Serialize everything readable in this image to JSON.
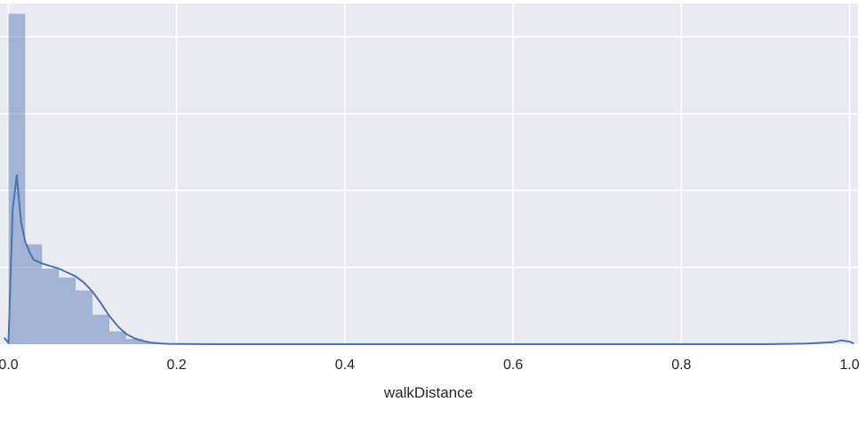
{
  "chart_data": {
    "type": "histogram",
    "xlabel": "walkDistance",
    "ylabel": "",
    "title": "",
    "xlim": [
      -0.01,
      1.01
    ],
    "ylim": [
      0,
      26.6
    ],
    "x_ticks": [
      0.0,
      0.2,
      0.4,
      0.6,
      0.8,
      1.0
    ],
    "x_tick_labels": [
      "0.0",
      "0.2",
      "0.4",
      "0.6",
      "0.8",
      "1.0"
    ],
    "y_gridlines": [
      6,
      12,
      18,
      24
    ],
    "grid": true,
    "style": "seaborn-darkgrid",
    "colors": {
      "background": "#eaeaf2",
      "grid": "#ffffff",
      "bars": "#4c72b0",
      "kde_line": "#4c72b0"
    },
    "histogram": {
      "bin_width": 0.02,
      "bins_start": 0.0,
      "density_values": [
        25.8,
        7.8,
        5.9,
        5.2,
        4.2,
        2.3,
        1.0,
        0.4,
        0.15,
        0.05,
        0.02
      ]
    },
    "kde": {
      "x": [
        -0.005,
        0.0,
        0.005,
        0.01,
        0.015,
        0.02,
        0.025,
        0.03,
        0.04,
        0.05,
        0.06,
        0.07,
        0.08,
        0.09,
        0.1,
        0.11,
        0.12,
        0.13,
        0.14,
        0.15,
        0.16,
        0.17,
        0.18,
        0.19,
        0.2,
        0.22,
        0.25,
        0.3,
        0.4,
        0.5,
        0.6,
        0.7,
        0.8,
        0.9,
        0.95,
        0.98,
        0.99,
        1.0,
        1.005
      ],
      "y": [
        0.5,
        0.1,
        10.5,
        13.2,
        9.5,
        8.0,
        7.2,
        6.6,
        6.3,
        6.1,
        5.9,
        5.6,
        5.3,
        4.8,
        4.1,
        3.2,
        2.2,
        1.4,
        0.8,
        0.45,
        0.25,
        0.12,
        0.06,
        0.03,
        0.02,
        0.01,
        0.0,
        0.0,
        0.0,
        0.0,
        0.0,
        0.0,
        0.0,
        0.0,
        0.05,
        0.15,
        0.3,
        0.2,
        0.05
      ]
    }
  }
}
